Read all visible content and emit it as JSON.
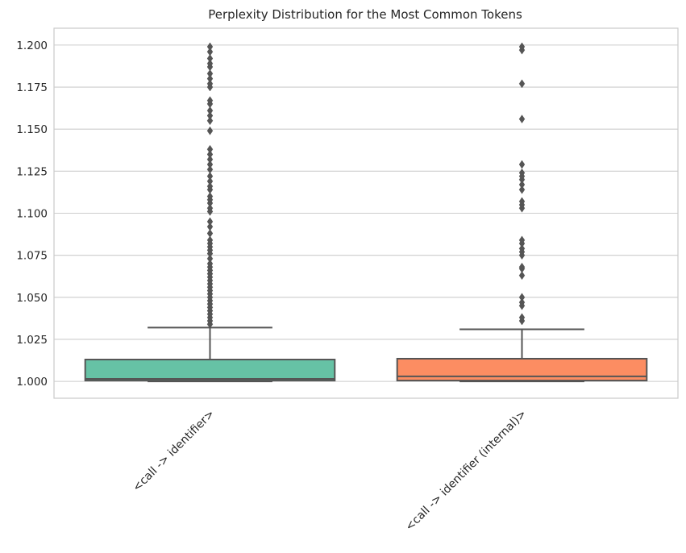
{
  "chart_data": {
    "type": "box",
    "title": "Perplexity Distribution for the Most Common Tokens",
    "xlabel": "",
    "ylabel": "",
    "ylim": [
      0.99,
      1.21
    ],
    "yticks": [
      "1.000",
      "1.025",
      "1.050",
      "1.075",
      "1.100",
      "1.125",
      "1.150",
      "1.175",
      "1.200"
    ],
    "grid": true,
    "categories": [
      "<call -> identifier>",
      "<call -> identifier (internal)>"
    ],
    "boxes": [
      {
        "category": "<call -> identifier>",
        "color": "#66c2a5",
        "whisker_low": 1.0,
        "q1": 1.0005,
        "median": 1.0015,
        "q3": 1.013,
        "whisker_high": 1.032,
        "outliers": [
          1.034,
          1.036,
          1.038,
          1.04,
          1.042,
          1.044,
          1.046,
          1.048,
          1.05,
          1.052,
          1.054,
          1.056,
          1.058,
          1.06,
          1.062,
          1.064,
          1.066,
          1.068,
          1.07,
          1.073,
          1.076,
          1.078,
          1.08,
          1.082,
          1.084,
          1.088,
          1.092,
          1.095,
          1.101,
          1.103,
          1.106,
          1.108,
          1.11,
          1.114,
          1.116,
          1.119,
          1.122,
          1.126,
          1.129,
          1.132,
          1.135,
          1.138,
          1.149,
          1.155,
          1.158,
          1.161,
          1.165,
          1.167,
          1.175,
          1.177,
          1.18,
          1.183,
          1.187,
          1.189,
          1.192,
          1.196,
          1.199
        ]
      },
      {
        "category": "<call -> identifier (internal)>",
        "color": "#fc8d62",
        "whisker_low": 1.0,
        "q1": 1.0005,
        "median": 1.003,
        "q3": 1.0135,
        "whisker_high": 1.031,
        "outliers": [
          1.036,
          1.038,
          1.045,
          1.047,
          1.05,
          1.063,
          1.067,
          1.068,
          1.075,
          1.077,
          1.079,
          1.082,
          1.084,
          1.103,
          1.105,
          1.107,
          1.114,
          1.117,
          1.12,
          1.122,
          1.124,
          1.129,
          1.156,
          1.177,
          1.197,
          1.199
        ]
      }
    ]
  },
  "colors": {
    "box_edge": "#555555",
    "grid": "#cccccc",
    "axes_edge": "#cccccc"
  }
}
